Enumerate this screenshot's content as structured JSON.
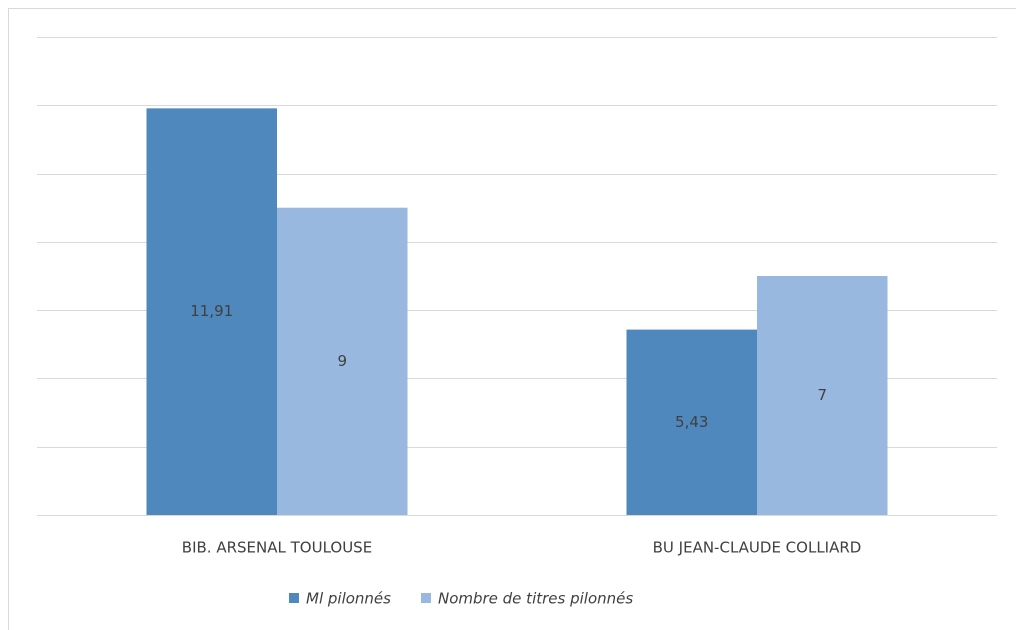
{
  "chart_data": {
    "type": "bar",
    "categories": [
      "BIB. ARSENAL TOULOUSE",
      "BU JEAN-CLAUDE COLLIARD"
    ],
    "series": [
      {
        "name": "Ml pilonnés",
        "color": "#4f88bd",
        "values": [
          11.91,
          5.43
        ],
        "value_labels": [
          "11,91",
          "5,43"
        ]
      },
      {
        "name": "Nombre de titres pilonnés",
        "color": "#98b8df",
        "values": [
          9,
          7
        ],
        "value_labels": [
          "9",
          "7"
        ]
      }
    ],
    "ylim": [
      0,
      14
    ],
    "yticks": [
      0,
      2,
      4,
      6,
      8,
      10,
      12,
      14
    ],
    "grid": true,
    "legend": "bottom"
  }
}
